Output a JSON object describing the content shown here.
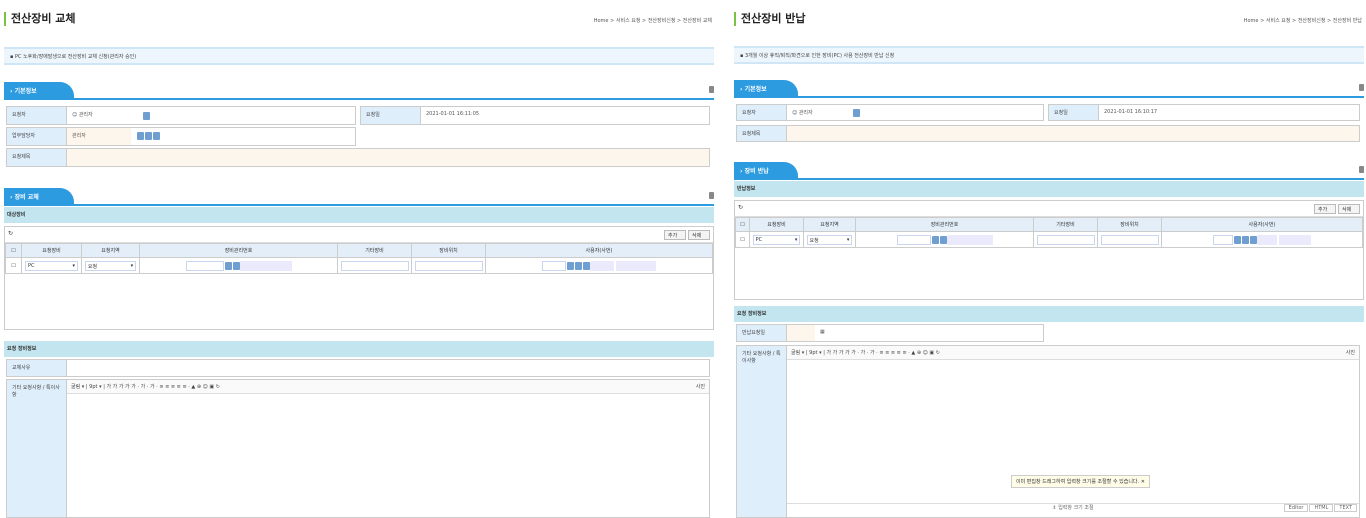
{
  "left": {
    "title": "전산장비 교체",
    "breadcrumb": "Home > 서비스 요청 > 전산장비신청 > 전산장비 교체",
    "notice": "PC 노후화/장애발생으로 전산장비 교체 신청(관리자 승인)",
    "basic_tab": "기본정보",
    "requester_label": "요청자",
    "requester_value": "관리자",
    "request_date_label": "요청일",
    "request_date_value": "2021-01-01 16:11:05",
    "approver_label": "업무담당자",
    "approver_value": "관리자",
    "subject_label": "요청제목",
    "equip_tab": "장비 교체",
    "grid_title": "대상장비",
    "add_label": "추가",
    "delete_label": "삭제",
    "columns": [
      "요청장비",
      "요청지역",
      "장비관리번호",
      "기타장비",
      "장비위치",
      "사용자(사번)"
    ],
    "row": {
      "equipment": "PC",
      "region": "요청"
    },
    "detail_title": "요청 장비정보",
    "reason_label": "교체사유",
    "etc_label": "기타 요청사항 / 특이사항",
    "editor_font": "굴림",
    "editor_size": "9pt",
    "editor_extra": "사진"
  },
  "right": {
    "title": "전산장비 반납",
    "breadcrumb": "Home > 서비스 요청 > 전산장비신청 > 전산장비 반납",
    "notice": "3개월 이상 휴직/퇴직/파견으로 인한 장비(PC) 사용 전산장비 반납 신청",
    "basic_tab": "기본정보",
    "requester_label": "요청자",
    "requester_value": "관리자",
    "request_date_label": "요청일",
    "request_date_value": "2021-01-01 16:10:17",
    "subject_label": "요청제목",
    "equip_tab": "장비 반납",
    "grid_title": "반납정보",
    "add_label": "추가",
    "delete_label": "삭제",
    "columns": [
      "요청장비",
      "요청지역",
      "장비관리번호",
      "기타장비",
      "장비위치",
      "사용자(사번)"
    ],
    "row": {
      "equipment": "PC",
      "region": "요청"
    },
    "detail_title": "요청 장비정보",
    "return_date_label": "반납요청일",
    "etc_label": "기타 요청사항 / 특이사항",
    "editor_font": "굴림",
    "editor_size": "9pt",
    "editor_extra": "사진",
    "tooltip": "이미 편집창 드래그하여 입력창 크기를 조절할 수 있습니다.",
    "resize_label": "입력창 크기 조절",
    "modes": [
      "Editor",
      "HTML",
      "TEXT"
    ]
  },
  "toolbar_glyphs": "가 가 가 가 가 · 가 · 가 · ≡ ≡ ≡ ≡ ≡ · ▲ ⊕ ☺ ▣ ↻"
}
